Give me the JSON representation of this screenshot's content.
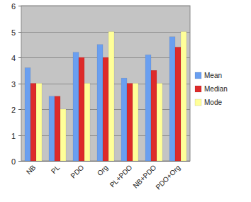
{
  "chart_data": {
    "type": "bar",
    "categories": [
      "NB",
      "PL",
      "PDO",
      "Org",
      "PL+PDO",
      "NB+PDO",
      "PDO+Org"
    ],
    "series": [
      {
        "name": "Mean",
        "color": "#6a9ff0",
        "values": [
          3.6,
          2.5,
          4.2,
          4.5,
          3.2,
          4.1,
          4.8
        ]
      },
      {
        "name": "Median",
        "color": "#dd2a2a",
        "values": [
          3.0,
          2.5,
          4.0,
          4.0,
          3.0,
          3.5,
          4.4
        ]
      },
      {
        "name": "Mode",
        "color": "#ffff99",
        "values": [
          3.0,
          2.0,
          3.0,
          5.0,
          3.0,
          3.0,
          5.0
        ]
      }
    ],
    "ylim": [
      0,
      6
    ],
    "yticks": [
      0,
      1,
      2,
      3,
      4,
      5,
      6
    ],
    "grid": true,
    "legend": "right"
  }
}
